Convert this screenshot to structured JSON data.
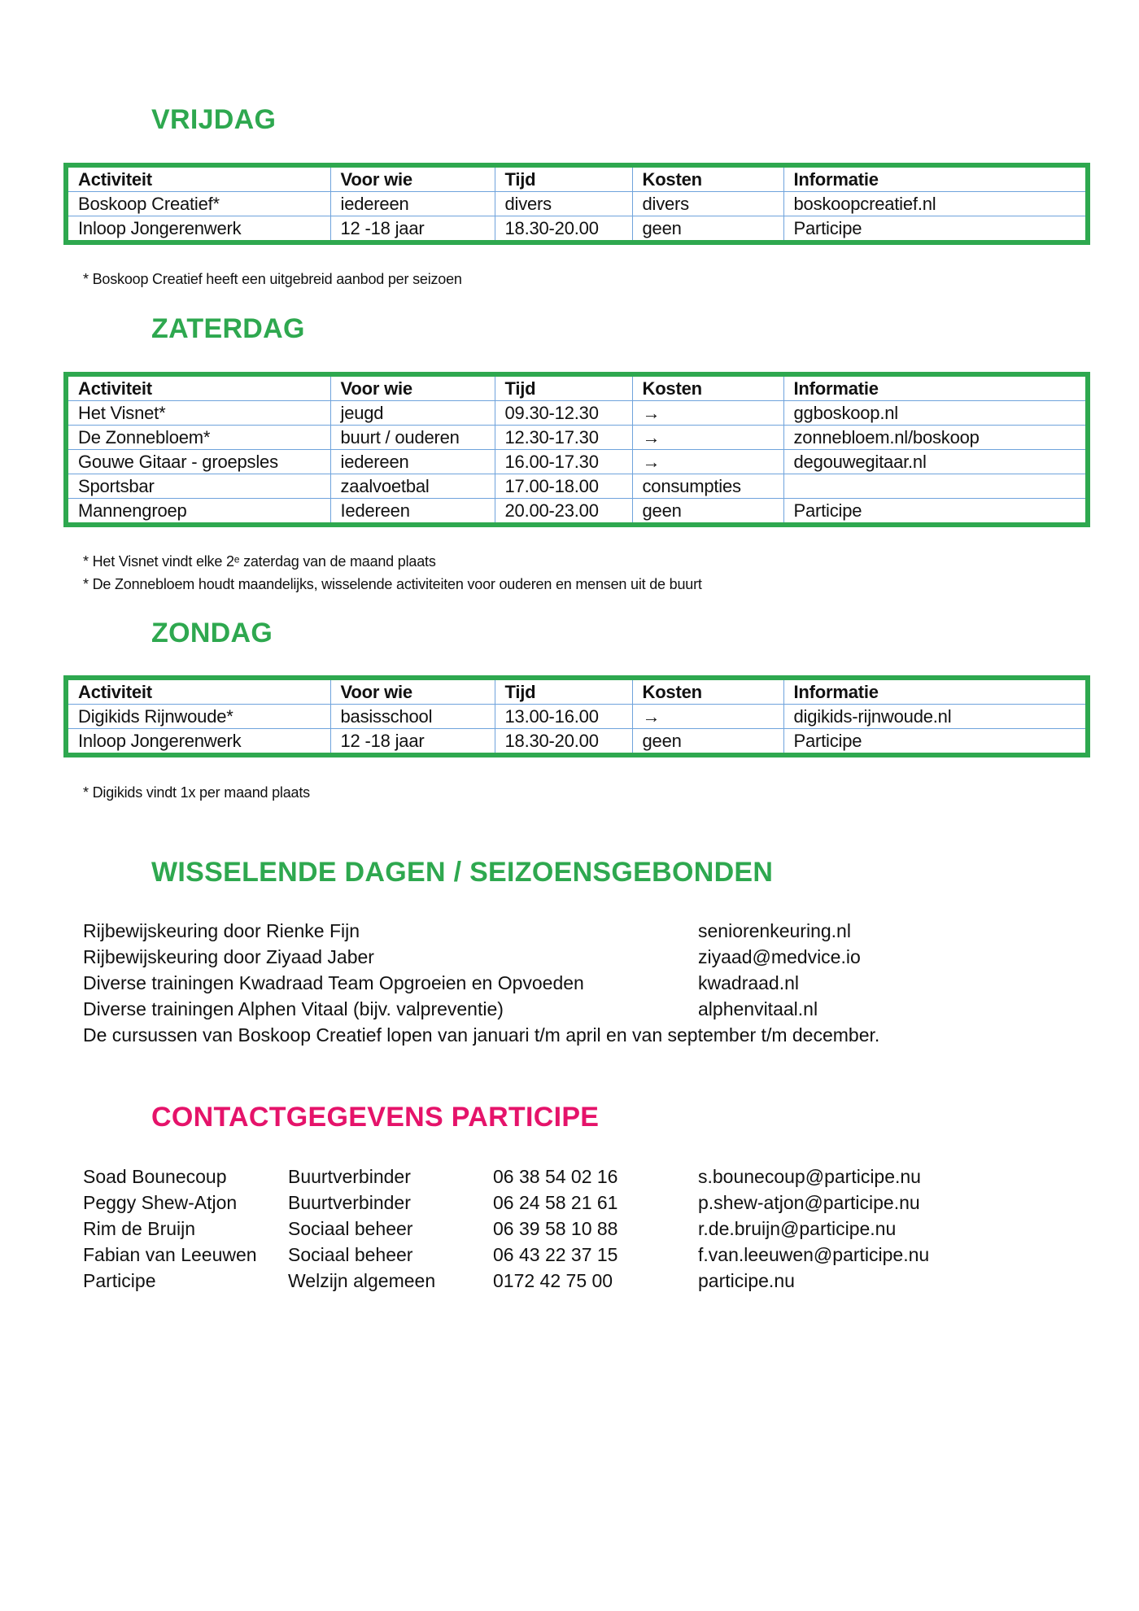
{
  "headers": [
    "Activiteit",
    "Voor wie",
    "Tijd",
    "Kosten",
    "Informatie"
  ],
  "colors": {
    "green": "#2ea84f",
    "pink": "#e5136a",
    "grid": "#6fa3dc"
  },
  "vrijdag": {
    "title": "VRIJDAG",
    "rows": [
      [
        "Boskoop Creatief*",
        "iedereen",
        "divers",
        "divers",
        "boskoopcreatief.nl"
      ],
      [
        "Inloop Jongerenwerk",
        "12 -18 jaar",
        "18.30-20.00",
        "geen",
        "Participe"
      ]
    ],
    "notes": [
      "* Boskoop Creatief heeft een uitgebreid aanbod per seizoen"
    ]
  },
  "zaterdag": {
    "title": "ZATERDAG",
    "rows": [
      [
        "Het Visnet*",
        "jeugd",
        "09.30-12.30",
        "→",
        "ggboskoop.nl"
      ],
      [
        "De Zonnebloem*",
        "buurt / ouderen",
        "12.30-17.30",
        "→",
        "zonnebloem.nl/boskoop"
      ],
      [
        "Gouwe Gitaar - groepsles",
        "iedereen",
        "16.00-17.30",
        "→",
        "degouwegitaar.nl"
      ],
      [
        "Sportsbar",
        "zaalvoetbal",
        "17.00-18.00",
        "consumpties",
        ""
      ],
      [
        "Mannengroep",
        "Iedereen",
        "20.00-23.00",
        "geen",
        "Participe"
      ]
    ],
    "notes": [
      "* Het Visnet vindt elke 2ᵉ zaterdag van de maand plaats",
      "* De Zonnebloem houdt maandelijks, wisselende activiteiten voor ouderen en mensen uit de buurt"
    ]
  },
  "zondag": {
    "title": "ZONDAG",
    "rows": [
      [
        "Digikids Rijnwoude*",
        "basisschool",
        "13.00-16.00",
        "→",
        "digikids-rijnwoude.nl"
      ],
      [
        "Inloop Jongerenwerk",
        "12 -18 jaar",
        "18.30-20.00",
        "geen",
        "Participe"
      ]
    ],
    "notes": [
      "* Digikids vindt 1x per maand plaats"
    ]
  },
  "wisselend": {
    "title": "WISSELENDE DAGEN / SEIZOENSGEBONDEN",
    "items": [
      {
        "text": "Rijbewijskeuring door Rienke Fijn",
        "link": "seniorenkeuring.nl"
      },
      {
        "text": "Rijbewijskeuring door Ziyaad Jaber",
        "link": "ziyaad@medvice.io"
      },
      {
        "text": "Diverse trainingen Kwadraad Team Opgroeien en Opvoeden",
        "link": "kwadraad.nl"
      },
      {
        "text": "Diverse trainingen Alphen Vitaal (bijv. valpreventie)",
        "link": "alphenvitaal.nl"
      },
      {
        "text": "De cursussen van Boskoop Creatief lopen van januari t/m april en van september t/m december.",
        "link": ""
      }
    ]
  },
  "contact": {
    "title": "CONTACTGEGEVENS PARTICIPE",
    "rows": [
      [
        "Soad Bounecoup",
        "Buurtverbinder",
        "06 38 54 02 16",
        "s.bounecoup@participe.nu"
      ],
      [
        "Peggy Shew-Atjon",
        "Buurtverbinder",
        "06 24 58 21 61",
        "p.shew-atjon@participe.nu"
      ],
      [
        "Rim de Bruijn",
        "Sociaal beheer",
        "06 39 58 10 88",
        "r.de.bruijn@participe.nu"
      ],
      [
        "Fabian van Leeuwen",
        "Sociaal beheer",
        "06 43 22 37 15",
        "f.van.leeuwen@participe.nu"
      ],
      [
        "Participe",
        "Welzijn algemeen",
        "0172 42 75 00",
        "participe.nu"
      ]
    ]
  }
}
